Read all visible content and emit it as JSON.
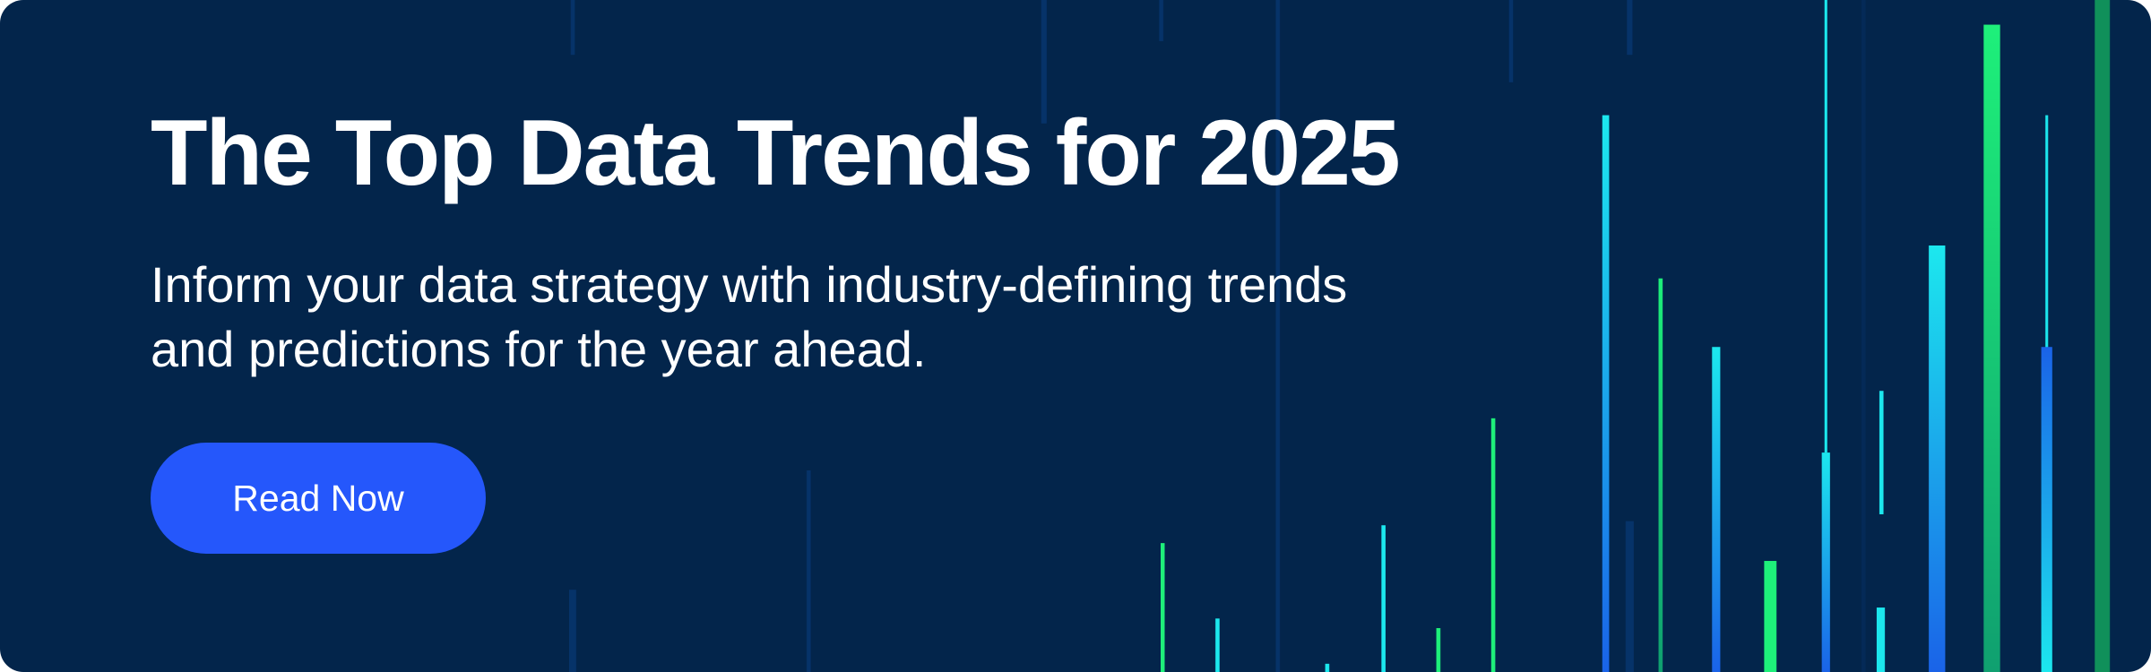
{
  "banner": {
    "title": "The Top Data Trends for 2025",
    "subtitle_lines": [
      "Inform your data strategy with industry-defining trends",
      "and predictions for the year ahead."
    ],
    "button": "Read Now"
  }
}
